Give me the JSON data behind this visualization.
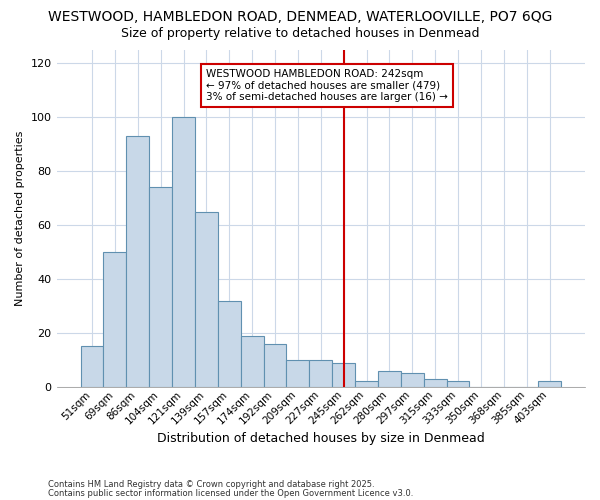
{
  "title1": "WESTWOOD, HAMBLEDON ROAD, DENMEAD, WATERLOOVILLE, PO7 6QG",
  "title2": "Size of property relative to detached houses in Denmead",
  "xlabel": "Distribution of detached houses by size in Denmead",
  "ylabel": "Number of detached properties",
  "footnote1": "Contains HM Land Registry data © Crown copyright and database right 2025.",
  "footnote2": "Contains public sector information licensed under the Open Government Licence v3.0.",
  "categories": [
    "51sqm",
    "69sqm",
    "86sqm",
    "104sqm",
    "121sqm",
    "139sqm",
    "157sqm",
    "174sqm",
    "192sqm",
    "209sqm",
    "227sqm",
    "245sqm",
    "262sqm",
    "280sqm",
    "297sqm",
    "315sqm",
    "333sqm",
    "350sqm",
    "368sqm",
    "385sqm",
    "403sqm"
  ],
  "values": [
    15,
    50,
    93,
    74,
    100,
    65,
    32,
    19,
    16,
    10,
    10,
    9,
    2,
    6,
    5,
    3,
    2,
    0,
    0,
    0,
    2
  ],
  "bar_color": "#c8d8e8",
  "bar_edge_color": "#6090b0",
  "highlight_bar_color": "#c8d8e8",
  "annotation_text": "WESTWOOD HAMBLEDON ROAD: 242sqm\n← 97% of detached houses are smaller (479)\n3% of semi-detached houses are larger (16) →",
  "annotation_box_color": "#ffffff",
  "annotation_border_color": "#cc0000",
  "red_line_index": 11,
  "ylim": [
    0,
    125
  ],
  "yticks": [
    0,
    20,
    40,
    60,
    80,
    100,
    120
  ],
  "bg_color": "#ffffff",
  "grid_color": "#ccd8e8",
  "title1_fontsize": 10,
  "title2_fontsize": 9,
  "xlabel_fontsize": 9,
  "ylabel_fontsize": 8,
  "annotation_fontsize": 7.5
}
